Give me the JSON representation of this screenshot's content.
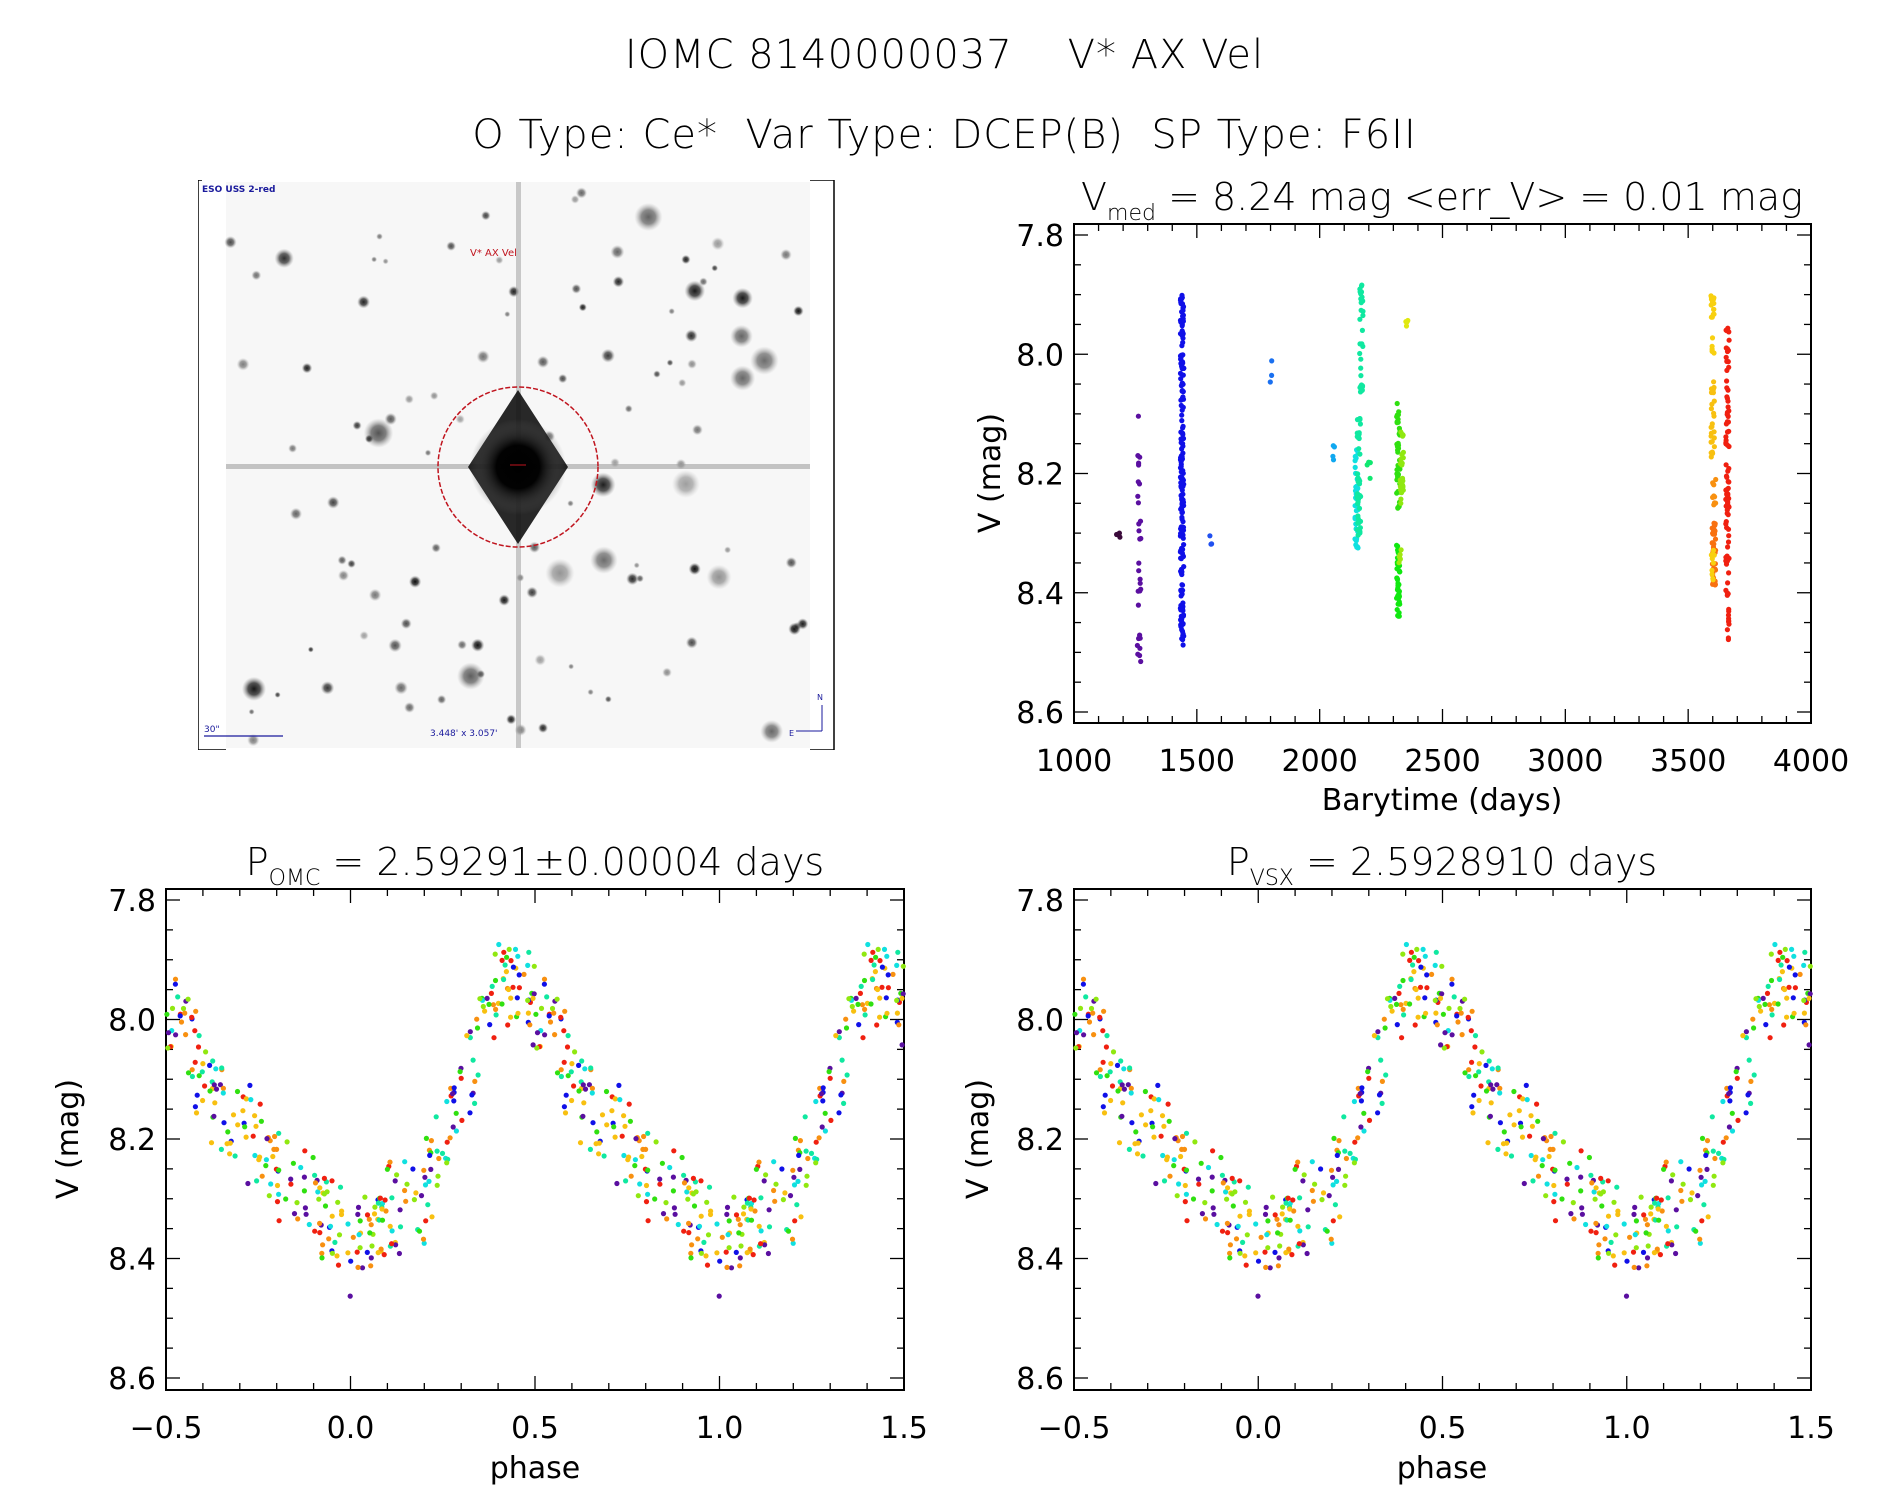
{
  "header": {
    "line1": "IOMC 8140000037    V* AX Vel",
    "line2": "O Type: Ce*  Var Type: DCEP(B)  SP Type: F6II"
  },
  "sky_image": {
    "survey_label": "ESO USS 2-red",
    "target_label": "V* AX Vel",
    "scale_label": "30\"",
    "fov_label": "3.448' x 3.057'",
    "north_label": "N",
    "east_label": "E",
    "circle_color": "#c0141e",
    "label_color": "#1a1a9c"
  },
  "chart_data": [
    {
      "id": "lightcurve",
      "type": "scatter",
      "title_main": "V",
      "title_sub": "med",
      "title_rest": " = 8.24 mag <err_V> = 0.01 mag",
      "xlabel": "Barytime (days)",
      "ylabel": "V (mag)",
      "xlim": [
        1000,
        4000
      ],
      "ylim": [
        8.6,
        7.8
      ],
      "y_inverted": true,
      "xticks": [
        1000,
        1500,
        2000,
        2500,
        3000,
        3500,
        4000
      ],
      "xtick_labels": [
        "1000",
        "1500",
        "2000",
        "2500",
        "3000",
        "3500",
        "4000"
      ],
      "yticks": [
        7.8,
        8.0,
        8.2,
        8.4,
        8.6
      ],
      "ytick_labels": [
        "7.8",
        "8.0",
        "8.2",
        "8.4",
        "8.6"
      ],
      "x_minor_step": 100,
      "y_minor_step": 0.05,
      "grid": false,
      "clusters": [
        {
          "x": 1180,
          "ymin": 8.28,
          "ymax": 8.31,
          "n": 3,
          "color": "#3a0a3a"
        },
        {
          "x": 1265,
          "ymin": 8.1,
          "ymax": 8.52,
          "n": 30,
          "color": "#5a0fa0"
        },
        {
          "x": 1440,
          "ymin": 7.9,
          "ymax": 8.49,
          "n": 200,
          "color": "#1010e8"
        },
        {
          "x": 1560,
          "ymin": 8.3,
          "ymax": 8.32,
          "n": 3,
          "color": "#2050f0"
        },
        {
          "x": 1800,
          "ymin": 8.01,
          "ymax": 8.05,
          "n": 3,
          "color": "#1a70f0"
        },
        {
          "x": 2055,
          "ymin": 8.15,
          "ymax": 8.18,
          "n": 4,
          "color": "#10a8f0"
        },
        {
          "x": 2150,
          "ymin": 8.16,
          "ymax": 8.33,
          "n": 40,
          "color": "#10e0e0"
        },
        {
          "x": 2170,
          "ymin": 7.88,
          "ymax": 8.07,
          "n": 30,
          "color": "#10e8a0"
        },
        {
          "x": 2160,
          "ymin": 8.1,
          "ymax": 8.32,
          "n": 40,
          "color": "#10e8a0"
        },
        {
          "x": 2200,
          "ymin": 8.18,
          "ymax": 8.21,
          "n": 4,
          "color": "#10e870"
        },
        {
          "x": 2320,
          "ymin": 8.08,
          "ymax": 8.26,
          "n": 40,
          "color": "#30e010"
        },
        {
          "x": 2335,
          "ymin": 8.12,
          "ymax": 8.25,
          "n": 30,
          "color": "#90e810"
        },
        {
          "x": 2320,
          "ymin": 8.32,
          "ymax": 8.44,
          "n": 40,
          "color": "#10e810"
        },
        {
          "x": 2330,
          "ymin": 8.32,
          "ymax": 8.35,
          "n": 6,
          "color": "#a0e810"
        },
        {
          "x": 2355,
          "ymin": 7.94,
          "ymax": 7.96,
          "n": 4,
          "color": "#e0e810"
        },
        {
          "x": 3600,
          "ymin": 7.89,
          "ymax": 8.0,
          "n": 20,
          "color": "#f8d010"
        },
        {
          "x": 3600,
          "ymin": 8.04,
          "ymax": 8.18,
          "n": 25,
          "color": "#f8c010"
        },
        {
          "x": 3605,
          "ymin": 8.2,
          "ymax": 8.26,
          "n": 10,
          "color": "#f89010"
        },
        {
          "x": 3605,
          "ymin": 8.28,
          "ymax": 8.39,
          "n": 40,
          "color": "#f87010"
        },
        {
          "x": 3600,
          "ymin": 8.32,
          "ymax": 8.38,
          "n": 10,
          "color": "#f8d010"
        },
        {
          "x": 3660,
          "ymin": 7.95,
          "ymax": 8.49,
          "n": 90,
          "color": "#f02010"
        }
      ]
    },
    {
      "id": "phase_omc",
      "type": "scatter",
      "title_main": "P",
      "title_sub": "OMC",
      "title_rest": " = 2.59291±0.00004 days",
      "xlabel": "phase",
      "ylabel": "V (mag)",
      "xlim": [
        -0.5,
        1.5
      ],
      "ylim": [
        8.6,
        7.8
      ],
      "y_inverted": true,
      "period_days": 2.59291,
      "period_error_days": 4e-05,
      "xticks": [
        -0.5,
        0.0,
        0.5,
        1.0,
        1.5
      ],
      "xtick_labels": [
        "−0.5",
        "0.0",
        "0.5",
        "1.0",
        "1.5"
      ],
      "yticks": [
        7.8,
        8.0,
        8.2,
        8.4,
        8.6
      ],
      "ytick_labels": [
        "7.8",
        "8.0",
        "8.2",
        "8.4",
        "8.6"
      ],
      "x_minor_step": 0.1,
      "y_minor_step": 0.05,
      "grid": false,
      "curve_shape": {
        "phase": [
          0.0,
          0.1,
          0.2,
          0.3,
          0.4,
          0.5,
          0.6,
          0.7,
          0.8,
          0.9,
          1.0
        ],
        "mag": [
          8.38,
          8.33,
          8.3,
          8.12,
          7.93,
          7.97,
          8.1,
          8.18,
          8.24,
          8.3,
          8.38
        ],
        "scatter_mag": 0.07
      },
      "series_colors": [
        "#1010e8",
        "#f02010",
        "#f89010",
        "#10e8a0",
        "#30e010",
        "#90e810",
        "#f8c010",
        "#10e0e0",
        "#5a0fa0"
      ]
    },
    {
      "id": "phase_vsx",
      "type": "scatter",
      "title_main": "P",
      "title_sub": "VSX",
      "title_rest": " = 2.5928910 days",
      "xlabel": "phase",
      "ylabel": "V (mag)",
      "xlim": [
        -0.5,
        1.5
      ],
      "ylim": [
        8.6,
        7.8
      ],
      "y_inverted": true,
      "period_days": 2.592891,
      "xticks": [
        -0.5,
        0.0,
        0.5,
        1.0,
        1.5
      ],
      "xtick_labels": [
        "−0.5",
        "0.0",
        "0.5",
        "1.0",
        "1.5"
      ],
      "yticks": [
        7.8,
        8.0,
        8.2,
        8.4,
        8.6
      ],
      "ytick_labels": [
        "7.8",
        "8.0",
        "8.2",
        "8.4",
        "8.6"
      ],
      "x_minor_step": 0.1,
      "y_minor_step": 0.05,
      "grid": false,
      "curve_shape": {
        "phase": [
          0.0,
          0.1,
          0.2,
          0.3,
          0.4,
          0.5,
          0.6,
          0.7,
          0.8,
          0.9,
          1.0
        ],
        "mag": [
          8.38,
          8.33,
          8.3,
          8.12,
          7.93,
          7.97,
          8.1,
          8.18,
          8.24,
          8.3,
          8.38
        ],
        "scatter_mag": 0.07
      },
      "series_colors": [
        "#1010e8",
        "#f02010",
        "#f89010",
        "#10e8a0",
        "#30e010",
        "#90e810",
        "#f8c010",
        "#10e0e0",
        "#5a0fa0"
      ]
    }
  ]
}
